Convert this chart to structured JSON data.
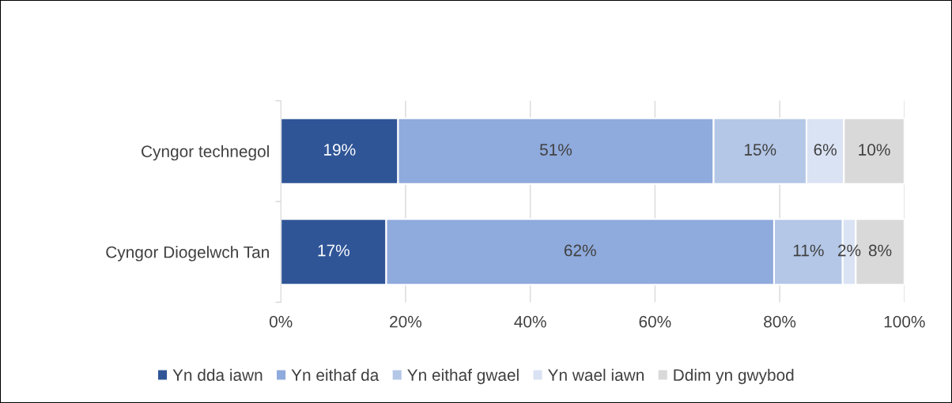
{
  "chart_data": {
    "type": "bar",
    "orientation": "horizontal",
    "stacked": true,
    "categories": [
      "Cyngor technegol",
      "Cyngor Diogelwch Tan"
    ],
    "series": [
      {
        "name": "Yn dda iawn",
        "color": "#2f5597",
        "values": [
          18.8,
          16.9
        ],
        "value_labels": [
          "19%",
          "17%"
        ]
      },
      {
        "name": "Yn eithaf da",
        "color": "#8faadc",
        "values": [
          50.6,
          62.2
        ],
        "value_labels": [
          "51%",
          "62%"
        ]
      },
      {
        "name": "Yn eithaf gwael",
        "color": "#b4c7e7",
        "values": [
          14.9,
          11.0
        ],
        "value_labels": [
          "15%",
          "11%"
        ]
      },
      {
        "name": "Yn wael iawn",
        "color": "#dae3f3",
        "values": [
          6.0,
          2.1
        ],
        "value_labels": [
          "6%",
          "2%"
        ]
      },
      {
        "name": "Ddim yn gwybod",
        "color": "#d9d9d9",
        "values": [
          9.7,
          7.8
        ],
        "value_labels": [
          "10%",
          "8%"
        ]
      }
    ],
    "xlim": [
      0,
      100
    ],
    "xticks": [
      {
        "value": 0,
        "label": "0%"
      },
      {
        "value": 20,
        "label": "20%"
      },
      {
        "value": 40,
        "label": "40%"
      },
      {
        "value": 60,
        "label": "60%"
      },
      {
        "value": 80,
        "label": "80%"
      },
      {
        "value": 100,
        "label": "100%"
      }
    ],
    "grid": "x",
    "legend": "bottom"
  }
}
